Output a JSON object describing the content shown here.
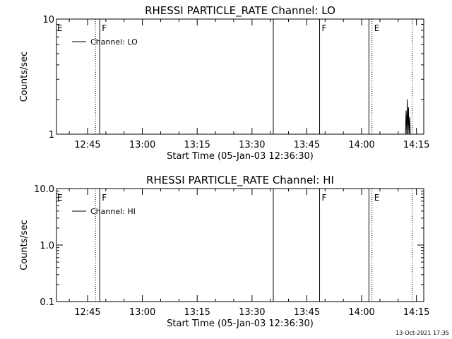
{
  "background_color": "#ffffff",
  "foreground_color": "#000000",
  "footer": {
    "timestamp": "13-Oct-2021 17:35"
  },
  "chart_data": [
    {
      "type": "line",
      "title": "RHESSI PARTICLE_RATE Channel: LO",
      "xlabel": "Start Time (05-Jan-03 12:36:30)",
      "ylabel": "Counts/sec",
      "yscale": "log",
      "ylim": [
        1,
        10
      ],
      "ytick_values": [
        1,
        10
      ],
      "ytick_labels": [
        "1",
        "10"
      ],
      "xlim": [
        "12:36:30",
        "14:17:00"
      ],
      "xtick_labels": [
        "12:45",
        "13:00",
        "13:15",
        "13:30",
        "13:45",
        "14:00",
        "14:15"
      ],
      "legend": {
        "position": "top-left",
        "entries": [
          "Channel: LO"
        ]
      },
      "grid": false,
      "vertical_lines": [
        {
          "x": "12:47:10",
          "style": "dotted",
          "flag": ""
        },
        {
          "x": "12:48:20",
          "style": "solid",
          "flag": "F"
        },
        {
          "x": "13:35:50",
          "style": "solid",
          "flag": ""
        },
        {
          "x": "13:48:30",
          "style": "solid",
          "flag": "F"
        },
        {
          "x": "14:02:00",
          "style": "solid",
          "flag": ""
        },
        {
          "x": "14:02:50",
          "style": "dotted",
          "flag": "E"
        },
        {
          "x": "14:13:50",
          "style": "dotted",
          "flag": ""
        }
      ],
      "edge_flags": [
        {
          "x": "12:36:30",
          "flag": "E"
        }
      ],
      "series": [
        {
          "name": "Channel: LO",
          "points": [
            {
              "x": "14:12:00",
              "y": 1.0
            },
            {
              "x": "14:12:10",
              "y": 1.6
            },
            {
              "x": "14:12:20",
              "y": 1.0
            },
            {
              "x": "14:12:30",
              "y": 2.0
            },
            {
              "x": "14:12:40",
              "y": 1.0
            },
            {
              "x": "14:12:50",
              "y": 1.7
            },
            {
              "x": "14:13:00",
              "y": 1.0
            },
            {
              "x": "14:13:10",
              "y": 1.4
            },
            {
              "x": "14:13:20",
              "y": 1.0
            }
          ]
        }
      ]
    },
    {
      "type": "line",
      "title": "RHESSI PARTICLE_RATE Channel: HI",
      "xlabel": "Start Time (05-Jan-03 12:36:30)",
      "ylabel": "Counts/sec",
      "yscale": "log",
      "ylim": [
        0.1,
        10
      ],
      "ytick_values": [
        0.1,
        1,
        10
      ],
      "ytick_labels": [
        "0.1",
        "1.0",
        "10.0"
      ],
      "xlim": [
        "12:36:30",
        "14:17:00"
      ],
      "xtick_labels": [
        "12:45",
        "13:00",
        "13:15",
        "13:30",
        "13:45",
        "14:00",
        "14:15"
      ],
      "legend": {
        "position": "top-left",
        "entries": [
          "Channel: HI"
        ]
      },
      "grid": false,
      "vertical_lines": [
        {
          "x": "12:47:10",
          "style": "dotted",
          "flag": ""
        },
        {
          "x": "12:48:20",
          "style": "solid",
          "flag": "F"
        },
        {
          "x": "13:35:50",
          "style": "solid",
          "flag": ""
        },
        {
          "x": "13:48:30",
          "style": "solid",
          "flag": "F"
        },
        {
          "x": "14:02:00",
          "style": "solid",
          "flag": ""
        },
        {
          "x": "14:02:50",
          "style": "dotted",
          "flag": "E"
        },
        {
          "x": "14:13:50",
          "style": "dotted",
          "flag": ""
        }
      ],
      "edge_flags": [
        {
          "x": "12:36:30",
          "flag": "E"
        }
      ],
      "series": [
        {
          "name": "Channel: HI",
          "points": []
        }
      ]
    }
  ]
}
